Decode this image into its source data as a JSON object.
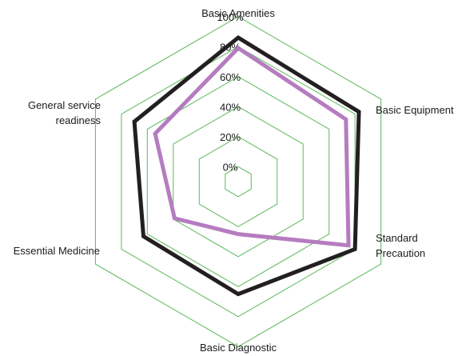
{
  "chart_data": {
    "type": "radar",
    "title": "",
    "axes": [
      {
        "lines": [
          "Basic Amenities"
        ]
      },
      {
        "lines": [
          "Basic Equipment"
        ]
      },
      {
        "lines": [
          "Standard",
          "Precaution"
        ]
      },
      {
        "lines": [
          "Basic Diagnostic"
        ]
      },
      {
        "lines": [
          "Essential Medicine"
        ]
      },
      {
        "lines": [
          "General service",
          "readiness"
        ]
      }
    ],
    "tick_labels": [
      "0%",
      "20%",
      "40%",
      "60%",
      "80%",
      "100%"
    ],
    "range": [
      -10,
      100
    ],
    "grid": true,
    "grid_color": "#5cb85c",
    "series": [
      {
        "color": "#231f20",
        "values": [
          86,
          83,
          80,
          65,
          63,
          70
        ]
      },
      {
        "color": "#b57cc0",
        "values": [
          79,
          73,
          75,
          25,
          39,
          54
        ]
      }
    ]
  }
}
